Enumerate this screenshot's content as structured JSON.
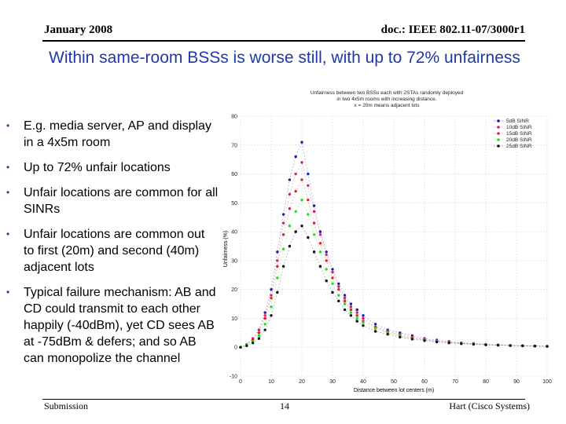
{
  "header": {
    "date": "January 2008",
    "doc": "doc.: IEEE 802.11-07/3000r1"
  },
  "slide": {
    "title": "Within same-room BSSs is worse still, with up to 72% unfairness",
    "bullets": [
      "E.g. media server, AP  and display in a 4x5m room",
      "Up to 72% unfair locations",
      "Unfair locations are common for all SINRs",
      "Unfair locations are common out to first (20m) and second (40m) adjacent lots",
      "Typical failure mechanism: AB and CD could transmit to each other happily (-40dBm), yet CD sees AB at -75dBm & defers; and so AB can monopolize the channel"
    ]
  },
  "footer": {
    "left": "Submission",
    "page": "14",
    "right": "Hart (Cisco Systems)"
  },
  "chart_data": {
    "type": "scatter",
    "title": "Unfairness between two BSSs each with 2STAs randomly deployed in two 4x5m rooms with increasing distance. x = 20m means adjacent lots",
    "title_lines": [
      "Unfairness between two BSSs each with 2STAs randomly deployed",
      "in two 4x5m rooms with increasing distance.",
      "x = 20m means adjacent lots"
    ],
    "xlabel": "Distance between lot centers (m)",
    "ylabel": "Unfairness (%)",
    "xlim": [
      0,
      100
    ],
    "ylim": [
      -10,
      80
    ],
    "xticks": [
      0,
      10,
      20,
      30,
      40,
      50,
      60,
      70,
      80,
      90,
      100
    ],
    "yticks": [
      -10,
      0,
      10,
      20,
      30,
      40,
      50,
      60,
      70,
      80
    ],
    "grid": true,
    "legend_position": "top-right",
    "x": [
      0,
      2,
      4,
      6,
      8,
      10,
      12,
      14,
      16,
      18,
      20,
      22,
      24,
      26,
      28,
      30,
      32,
      34,
      36,
      38,
      40,
      44,
      48,
      52,
      56,
      60,
      64,
      68,
      72,
      76,
      80,
      84,
      88,
      92,
      96,
      100
    ],
    "series": [
      {
        "name": "5dB SINR",
        "color": "#1a1aa8",
        "values": [
          0,
          1,
          3,
          6,
          12,
          20,
          33,
          46,
          58,
          66,
          71,
          60,
          49,
          40,
          33,
          27,
          22,
          18,
          15,
          13,
          11,
          8,
          6,
          5,
          4,
          3,
          2.5,
          2,
          1.5,
          1.3,
          1,
          0.8,
          0.6,
          0.5,
          0.4,
          0.3
        ]
      },
      {
        "name": "10dB SINR",
        "color": "#cc2277",
        "values": [
          0,
          1,
          3,
          6,
          11,
          18,
          30,
          43,
          53,
          60,
          64,
          56,
          47,
          39,
          32,
          26,
          21,
          17,
          14,
          12,
          10,
          7,
          5.5,
          4.5,
          3.5,
          2.8,
          2.2,
          1.8,
          1.4,
          1.2,
          1,
          0.8,
          0.6,
          0.5,
          0.4,
          0.3
        ]
      },
      {
        "name": "15dB SINR",
        "color": "#dd2222",
        "values": [
          0,
          1,
          2.5,
          5,
          10,
          17,
          28,
          39,
          48,
          54,
          58,
          51,
          43,
          36,
          30,
          24,
          20,
          16,
          13,
          11,
          9,
          7,
          5,
          4,
          3.2,
          2.6,
          2,
          1.6,
          1.3,
          1.1,
          0.9,
          0.7,
          0.6,
          0.5,
          0.4,
          0.3
        ]
      },
      {
        "name": "20dB SINR",
        "color": "#22dd22",
        "values": [
          0,
          1,
          2,
          4,
          8,
          14,
          24,
          34,
          42,
          47,
          51,
          46,
          39,
          33,
          27,
          22,
          18,
          15,
          12,
          10,
          8.5,
          6.5,
          5,
          4,
          3,
          2.5,
          2,
          1.6,
          1.3,
          1.1,
          0.9,
          0.7,
          0.6,
          0.5,
          0.4,
          0.3
        ]
      },
      {
        "name": "25dB SINR",
        "color": "#111111",
        "values": [
          0,
          0.5,
          1.5,
          3,
          6,
          11,
          19,
          28,
          35,
          40,
          42,
          38,
          33,
          28,
          23,
          19,
          16,
          13,
          11,
          9,
          7.5,
          5.5,
          4.5,
          3.5,
          2.8,
          2.3,
          1.8,
          1.5,
          1.2,
          1,
          0.8,
          0.7,
          0.6,
          0.5,
          0.4,
          0.3
        ]
      }
    ]
  }
}
